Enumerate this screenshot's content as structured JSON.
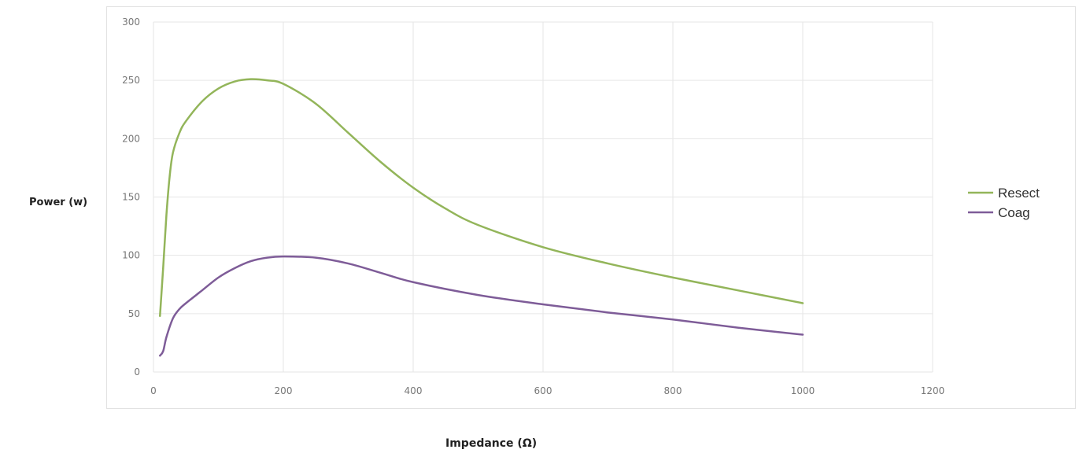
{
  "chart_data": {
    "type": "line",
    "title": "",
    "xlabel": "Impedance (Ω)",
    "ylabel": "Power (w)",
    "xlim": [
      0,
      1200
    ],
    "ylim": [
      0,
      300
    ],
    "x_ticks": [
      0,
      200,
      400,
      600,
      800,
      1000,
      1200
    ],
    "y_ticks": [
      0,
      50,
      100,
      150,
      200,
      250,
      300
    ],
    "grid": true,
    "legend_position": "right",
    "series": [
      {
        "name": "Resect",
        "color": "#93b55a",
        "x": [
          10,
          15,
          20,
          25,
          30,
          40,
          50,
          75,
          100,
          125,
          150,
          175,
          200,
          250,
          300,
          350,
          400,
          450,
          500,
          600,
          700,
          800,
          900,
          1000
        ],
        "y": [
          48,
          90,
          135,
          168,
          188,
          205,
          215,
          232,
          243,
          249,
          251,
          250,
          247,
          230,
          205,
          180,
          158,
          140,
          126,
          107,
          93,
          81,
          70,
          59
        ]
      },
      {
        "name": "Coag",
        "color": "#7e5c98",
        "x": [
          10,
          15,
          20,
          30,
          40,
          50,
          75,
          100,
          125,
          150,
          175,
          200,
          250,
          300,
          350,
          400,
          500,
          600,
          700,
          800,
          900,
          1000
        ],
        "y": [
          14,
          18,
          30,
          46,
          54,
          59,
          70,
          81,
          89,
          95,
          98,
          99,
          98,
          93,
          85,
          77,
          66,
          58,
          51,
          45,
          38,
          32
        ]
      }
    ]
  }
}
